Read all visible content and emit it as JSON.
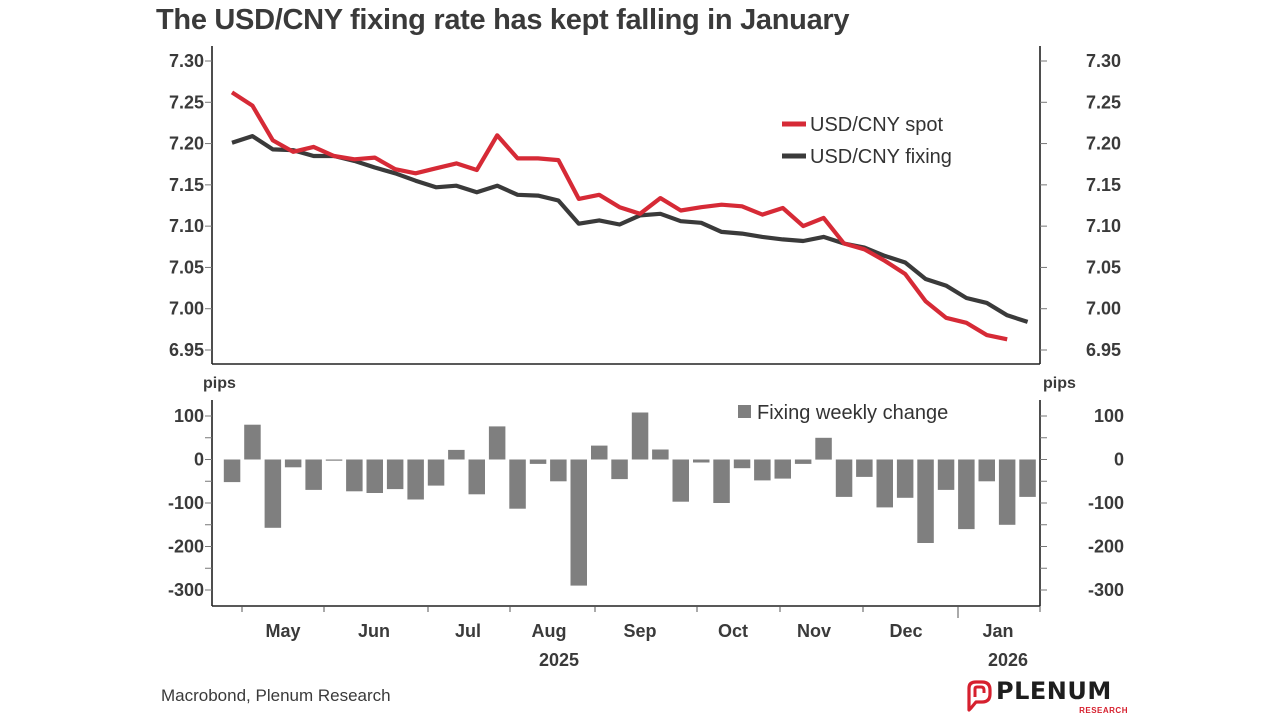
{
  "title": "The USD/CNY fixing rate has kept falling in January",
  "source": "Macrobond, Plenum Research",
  "logo": {
    "name": "PLENUM",
    "sub": "RESEARCH"
  },
  "colors": {
    "spot": "#d62a36",
    "fixing": "#3a3a3a",
    "bars": "#7f7f7f",
    "axis": "#222222",
    "text": "#3a3a3a"
  },
  "chart_data": [
    {
      "type": "line",
      "title": "The USD/CNY fixing rate has kept falling in January",
      "xlabel": "",
      "ylabel": "",
      "ylim": [
        6.95,
        7.3
      ],
      "y_ticks": [
        "7.30",
        "7.25",
        "7.20",
        "7.15",
        "7.10",
        "7.05",
        "7.00",
        "6.95"
      ],
      "y_tick_values": [
        7.3,
        7.25,
        7.2,
        7.15,
        7.1,
        7.05,
        7.0,
        6.95
      ],
      "dual_axis": true,
      "legend_position": "top-right",
      "x_frequency": "weekly",
      "series": [
        {
          "name": "USD/CNY spot",
          "color": "#d62a36",
          "values": [
            7.262,
            7.246,
            7.204,
            7.19,
            7.196,
            7.185,
            7.181,
            7.183,
            7.169,
            7.164,
            7.17,
            7.176,
            7.168,
            7.21,
            7.182,
            7.182,
            7.18,
            7.133,
            7.138,
            7.123,
            7.115,
            7.134,
            7.119,
            7.123,
            7.126,
            7.124,
            7.114,
            7.122,
            7.1,
            7.11,
            7.079,
            7.072,
            7.058,
            7.042,
            7.009,
            6.989,
            6.983,
            6.968,
            6.963
          ]
        },
        {
          "name": "USD/CNY fixing",
          "color": "#3a3a3a",
          "values": [
            7.201,
            7.209,
            7.193,
            7.192,
            7.185,
            7.185,
            7.179,
            7.171,
            7.164,
            7.155,
            7.147,
            7.149,
            7.141,
            7.149,
            7.138,
            7.137,
            7.131,
            7.103,
            7.107,
            7.102,
            7.113,
            7.115,
            7.106,
            7.104,
            7.093,
            7.091,
            7.087,
            7.084,
            7.082,
            7.087,
            7.079,
            7.074,
            7.064,
            7.056,
            7.036,
            7.028,
            7.013,
            7.007,
            6.992,
            6.984
          ]
        }
      ]
    },
    {
      "type": "bar",
      "title": "",
      "ylabel": "pips",
      "ylim": [
        -330,
        130
      ],
      "y_ticks": [
        "100",
        "0",
        "-100",
        "-200",
        "-300"
      ],
      "y_tick_values": [
        100,
        0,
        -100,
        -200,
        -300
      ],
      "dual_axis": true,
      "legend_position": "top-right",
      "series": [
        {
          "name": "Fixing weekly change",
          "color": "#7f7f7f",
          "values": [
            -52,
            80,
            -157,
            -18,
            -70,
            -2,
            -73,
            -77,
            -68,
            -92,
            -60,
            22,
            -80,
            76,
            -113,
            -10,
            -50,
            -290,
            32,
            -45,
            108,
            23,
            -97,
            -7,
            -100,
            -20,
            -48,
            -44,
            -10,
            50,
            -86,
            -40,
            -110,
            -88,
            -192,
            -70,
            -160,
            -50,
            -150,
            -86
          ]
        }
      ]
    }
  ],
  "x_axis": {
    "months": [
      "May",
      "Jun",
      "Jul",
      "Aug",
      "Sep",
      "Oct",
      "Nov",
      "Dec",
      "Jan"
    ],
    "years": [
      {
        "label": "2025",
        "under_month": "Aug"
      },
      {
        "label": "2026",
        "under_month": "Jan"
      }
    ]
  },
  "labels": {
    "unit_left": "pips",
    "unit_right": "pips"
  }
}
